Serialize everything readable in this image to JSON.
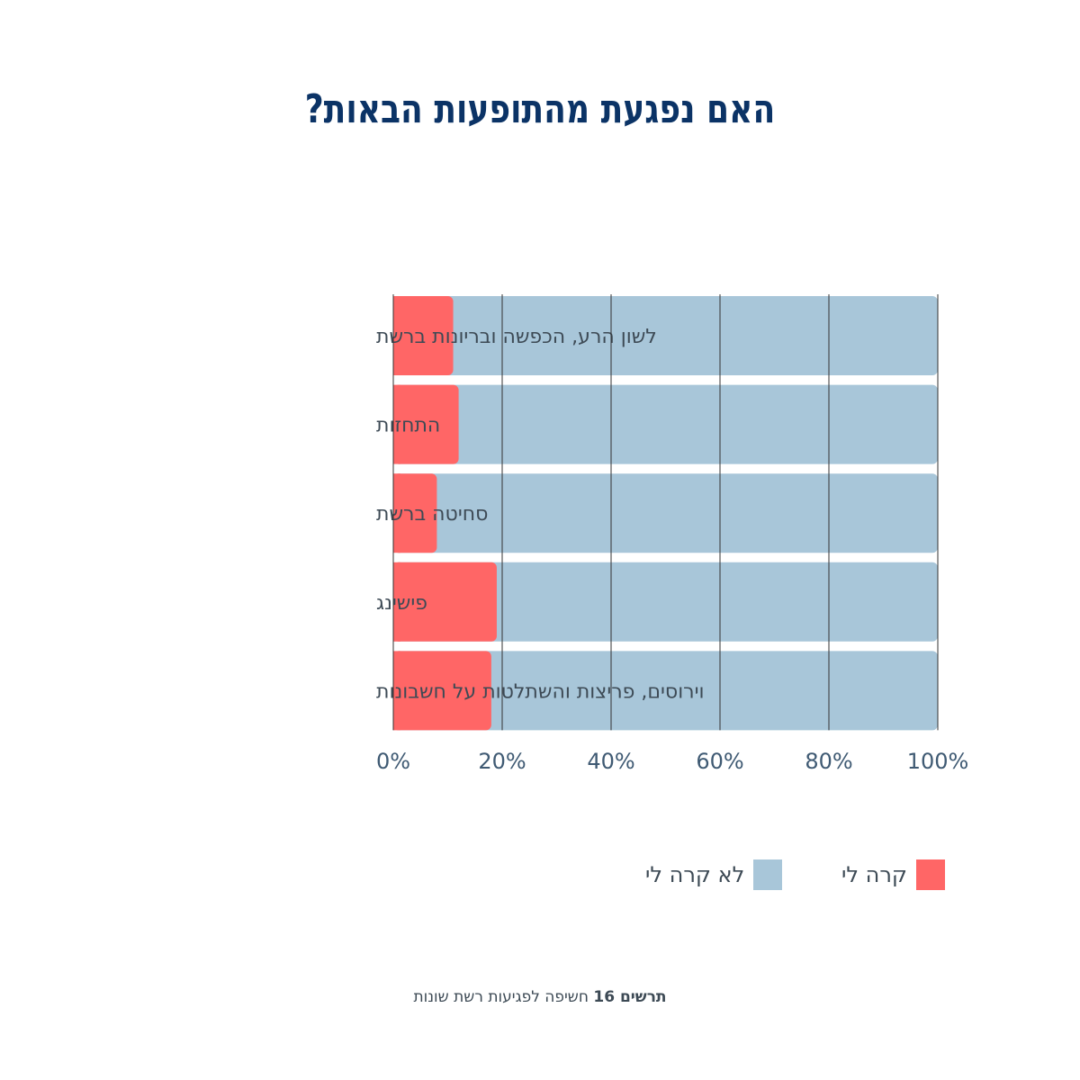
{
  "title": "האם נפגעת מהתופעות הבאות?",
  "colors": {
    "happened": "#ff6666",
    "not_happened": "#a8c6d9",
    "title": "#0b3366",
    "axis_text": "#3f5a73",
    "grid": "#333333"
  },
  "legend": {
    "happened": "קרה לי",
    "not_happened": "לא קרה לי"
  },
  "footer": {
    "brand": "תרשים 16",
    "text": "חשיפה לפגיעות רשת שונות"
  },
  "chart_data": {
    "type": "bar",
    "orientation": "horizontal",
    "stacked": true,
    "title": "האם נפגעת מהתופעות הבאות?",
    "categories": [
      "לשון הרע, הכפשה ובריונות ברשת",
      "התחזות",
      "סחיטה ברשת",
      "פישינג",
      "וירוסים, פריצות והשתלטות על חשבונות"
    ],
    "series": [
      {
        "name": "קרה לי",
        "values": [
          11,
          12,
          8,
          19,
          18
        ]
      },
      {
        "name": "לא קרה לי",
        "values": [
          89,
          88,
          92,
          81,
          82
        ]
      }
    ],
    "xlim": [
      0,
      100
    ],
    "xticks": [
      "0%",
      "20%",
      "40%",
      "60%",
      "80%",
      "100%"
    ],
    "grid": true,
    "legend_position": "bottom"
  }
}
